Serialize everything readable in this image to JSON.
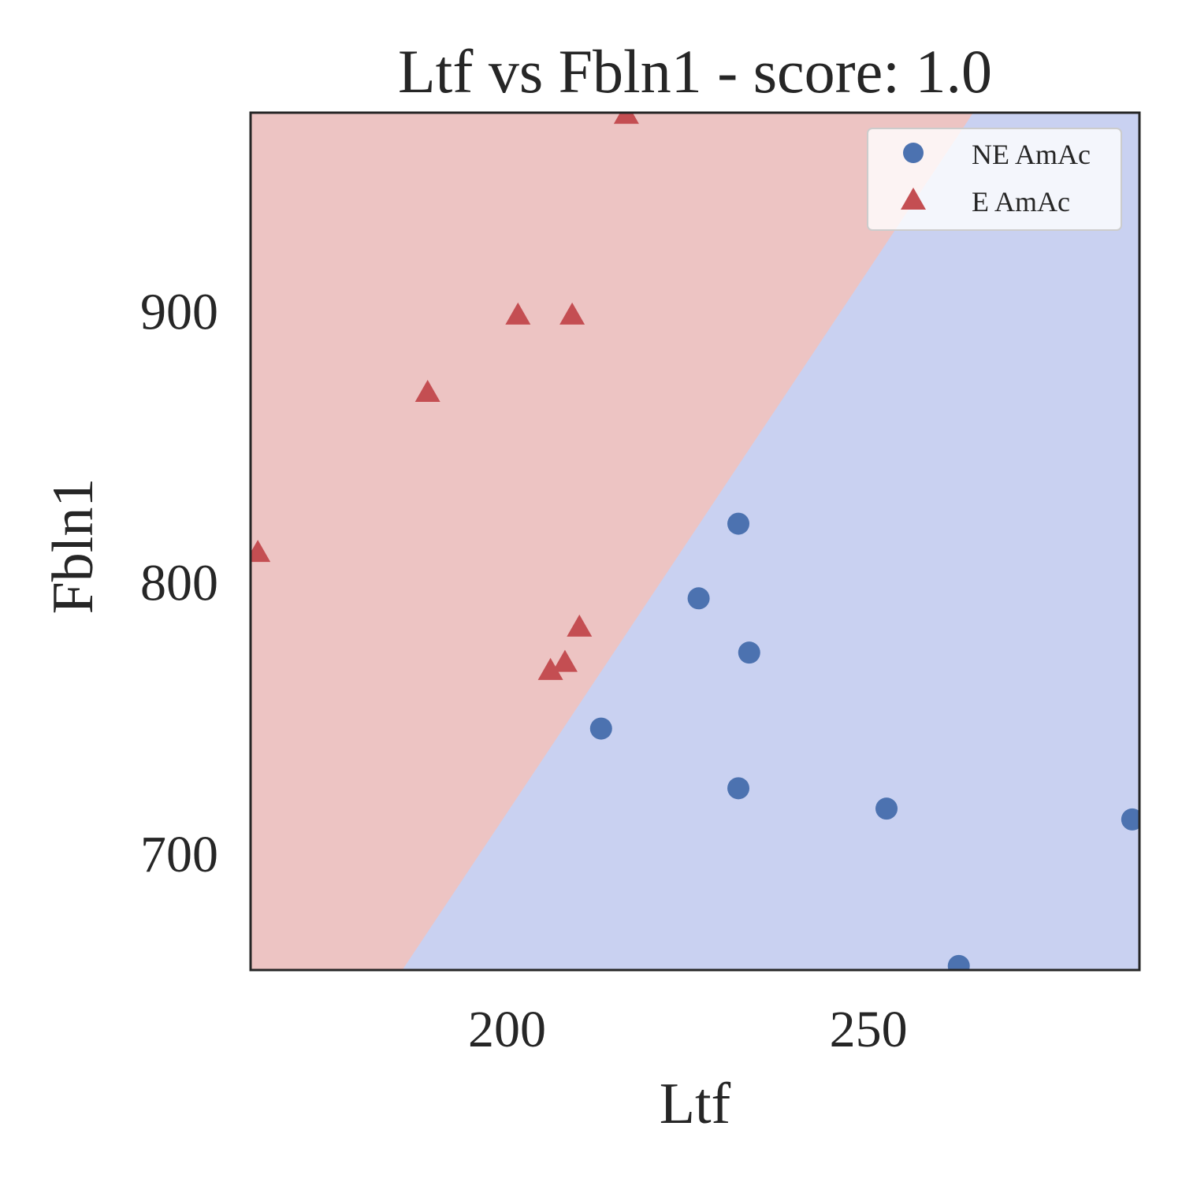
{
  "chart_data": {
    "type": "scatter",
    "title": "Ltf vs Fbln1 - score: 1.0",
    "xlabel": "Ltf",
    "ylabel": "Fbln1",
    "xlim": [
      164.5,
      287.5
    ],
    "ylim": [
      657,
      973
    ],
    "xticks": [
      200,
      250
    ],
    "yticks": [
      700,
      800,
      900
    ],
    "grid": false,
    "legend_position": "top-right",
    "decision_boundary": {
      "line": [
        [
          185.5,
          657
        ],
        [
          264.5,
          973
        ]
      ],
      "left_region": "E AmAc",
      "right_region": "NE AmAc",
      "colors": {
        "left": "#edc4c3",
        "right": "#c9d1f1"
      }
    },
    "series": [
      {
        "name": "NE AmAc",
        "marker": "circle",
        "color": "#4c72b0",
        "points": [
          [
            232.0,
            821.5
          ],
          [
            226.5,
            794.0
          ],
          [
            233.5,
            774.0
          ],
          [
            213.0,
            746.0
          ],
          [
            232.0,
            724.0
          ],
          [
            252.5,
            716.5
          ],
          [
            286.5,
            712.5
          ],
          [
            262.5,
            658.5
          ]
        ]
      },
      {
        "name": "E AmAc",
        "marker": "triangle",
        "color": "#c44e52",
        "points": [
          [
            216.5,
            972.0
          ],
          [
            201.5,
            898.0
          ],
          [
            209.0,
            898.0
          ],
          [
            189.0,
            869.5
          ],
          [
            165.5,
            810.5
          ],
          [
            210.0,
            783.0
          ],
          [
            208.0,
            770.0
          ],
          [
            206.0,
            767.0
          ]
        ]
      }
    ]
  }
}
